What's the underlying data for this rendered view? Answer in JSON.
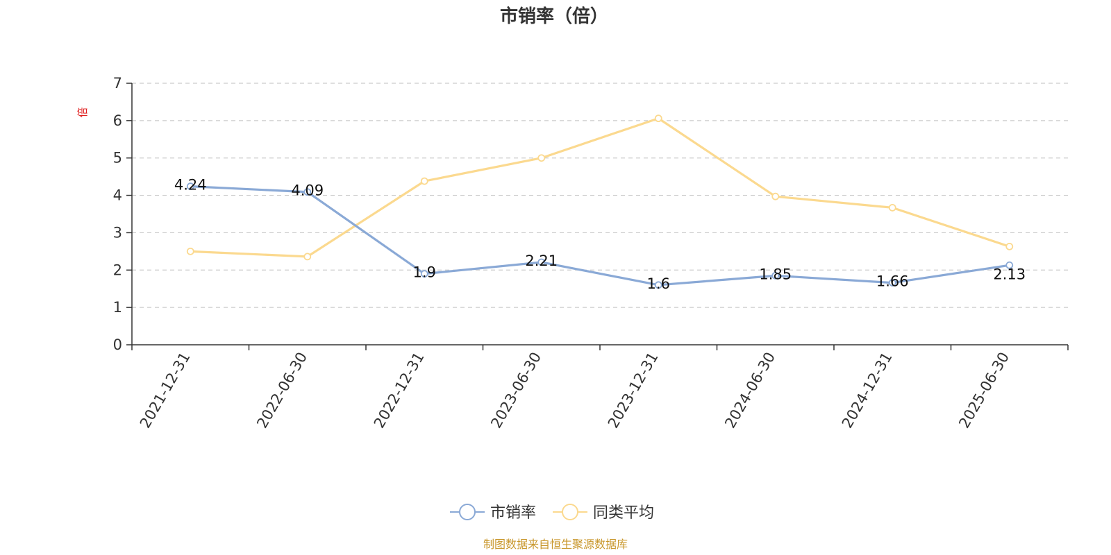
{
  "chart_data": {
    "type": "line",
    "title": "市销率（倍）",
    "ylabel": "倍",
    "xlabel": "",
    "categories": [
      "2021-12-31",
      "2022-06-30",
      "2022-12-31",
      "2023-06-30",
      "2023-12-31",
      "2024-06-30",
      "2024-12-31",
      "2025-06-30"
    ],
    "ylim": [
      0,
      7
    ],
    "yticks": [
      "0",
      "1",
      "2",
      "3",
      "4",
      "5",
      "6",
      "7"
    ],
    "grid": true,
    "legend_position": "bottom",
    "series": [
      {
        "name": "市销率",
        "values": [
          4.24,
          4.09,
          1.9,
          2.21,
          1.6,
          1.85,
          1.66,
          2.13
        ],
        "labels": [
          "4.24",
          "4.09",
          "1.9",
          "2.21",
          "1.6",
          "1.85",
          "1.66",
          "2.13"
        ],
        "color": "#8aa9d6"
      },
      {
        "name": "同类平均",
        "values": [
          2.5,
          2.36,
          4.38,
          5.0,
          6.06,
          3.97,
          3.67,
          2.63
        ],
        "color": "#fbd98f"
      }
    ]
  },
  "source": "制图数据来自恒生聚源数据库",
  "colors": {
    "axis": "#333333",
    "grid": "#cccccc",
    "unit": "#e02020",
    "source": "#c8962a"
  }
}
